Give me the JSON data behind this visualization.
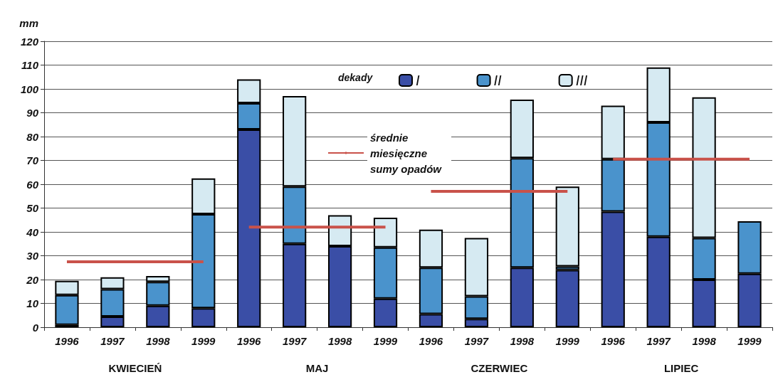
{
  "chart_data": {
    "type": "bar",
    "stacked": true,
    "ylabel": "mm",
    "legend_title": "dekady",
    "legend": "top",
    "categories": [
      "1996",
      "1997",
      "1998",
      "1999",
      "1996",
      "1997",
      "1998",
      "1999",
      "1996",
      "1997",
      "1998",
      "1999",
      "1996",
      "1997",
      "1998",
      "1999"
    ],
    "series": [
      {
        "name": "I",
        "color": "#3a4ea6",
        "values": [
          1,
          4.5,
          9,
          8,
          83,
          35,
          34,
          12,
          5.5,
          3.5,
          25,
          24,
          48.5,
          38,
          20,
          22.5
        ]
      },
      {
        "name": "II",
        "color": "#4a93cc",
        "values": [
          12.5,
          11.5,
          10,
          39.5,
          11,
          24,
          0,
          21.5,
          19.5,
          9.5,
          46,
          1.5,
          22,
          48,
          17.5,
          22
        ]
      },
      {
        "name": "III",
        "color": "#d6eaf2",
        "values": [
          6,
          5,
          2.5,
          15,
          10,
          38,
          13,
          12.5,
          16,
          24.5,
          24.5,
          33.5,
          22.5,
          23,
          59,
          0
        ]
      },
      {
        "name": "średnie miesięczne sumy opadów",
        "type": "line",
        "color": "#c9524a",
        "values": [
          27.5,
          27.5,
          27.5,
          27.5,
          null,
          null,
          null,
          null,
          null,
          null,
          null,
          null,
          null,
          null,
          null,
          null
        ]
      },
      {
        "type": "line",
        "color": "#c9524a",
        "values": [
          null,
          null,
          null,
          null,
          42,
          42,
          42,
          42,
          null,
          null,
          null,
          null,
          null,
          null,
          null,
          null
        ]
      },
      {
        "type": "line",
        "color": "#c9524a",
        "values": [
          null,
          null,
          null,
          null,
          null,
          null,
          null,
          null,
          57,
          57,
          57,
          57,
          null,
          null,
          null,
          null
        ]
      },
      {
        "type": "line",
        "color": "#c9524a",
        "values": [
          null,
          null,
          null,
          null,
          null,
          null,
          null,
          null,
          null,
          null,
          null,
          null,
          70.5,
          70.5,
          70.5,
          70.5
        ]
      }
    ],
    "annotations": [
      "KWIECIEŃ",
      "MAJ",
      "CZERWIEC",
      "LIPIEC"
    ],
    "marker": "none",
    "line_style": "solid",
    "ylim": [
      0,
      120
    ],
    "yticks": [
      0,
      10,
      20,
      30,
      40,
      50,
      60,
      70,
      80,
      90,
      100,
      110,
      120
    ],
    "grid": "y"
  }
}
